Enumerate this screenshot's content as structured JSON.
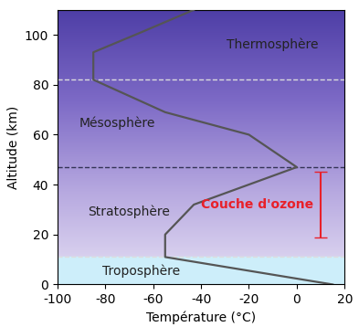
{
  "chart_data": {
    "type": "line",
    "x_label": "Température (°C)",
    "y_label": "Altitude (km)",
    "x": [
      15,
      -55,
      -55,
      -43,
      0,
      -20,
      -55,
      -85,
      -85,
      -65,
      -43
    ],
    "values": [
      0,
      11,
      20,
      32,
      47,
      60,
      69,
      82,
      93,
      101,
      110
    ],
    "color": "#555555",
    "xlim": [
      -100,
      20
    ],
    "xticks": [
      -100,
      -80,
      -60,
      -40,
      -20,
      0,
      20
    ],
    "ylim": [
      0,
      110
    ],
    "yticks": [
      0,
      20,
      40,
      60,
      80,
      100
    ],
    "grid": false,
    "layers": [
      "Troposphère",
      "Stratosphère",
      "Mésosphère",
      "Thermosphère"
    ],
    "boundaries": [
      11,
      47,
      82
    ],
    "ozone_layer": {
      "label": "Couche d'ozone",
      "bottom": 19,
      "top": 45,
      "color": "#e8202a"
    }
  }
}
